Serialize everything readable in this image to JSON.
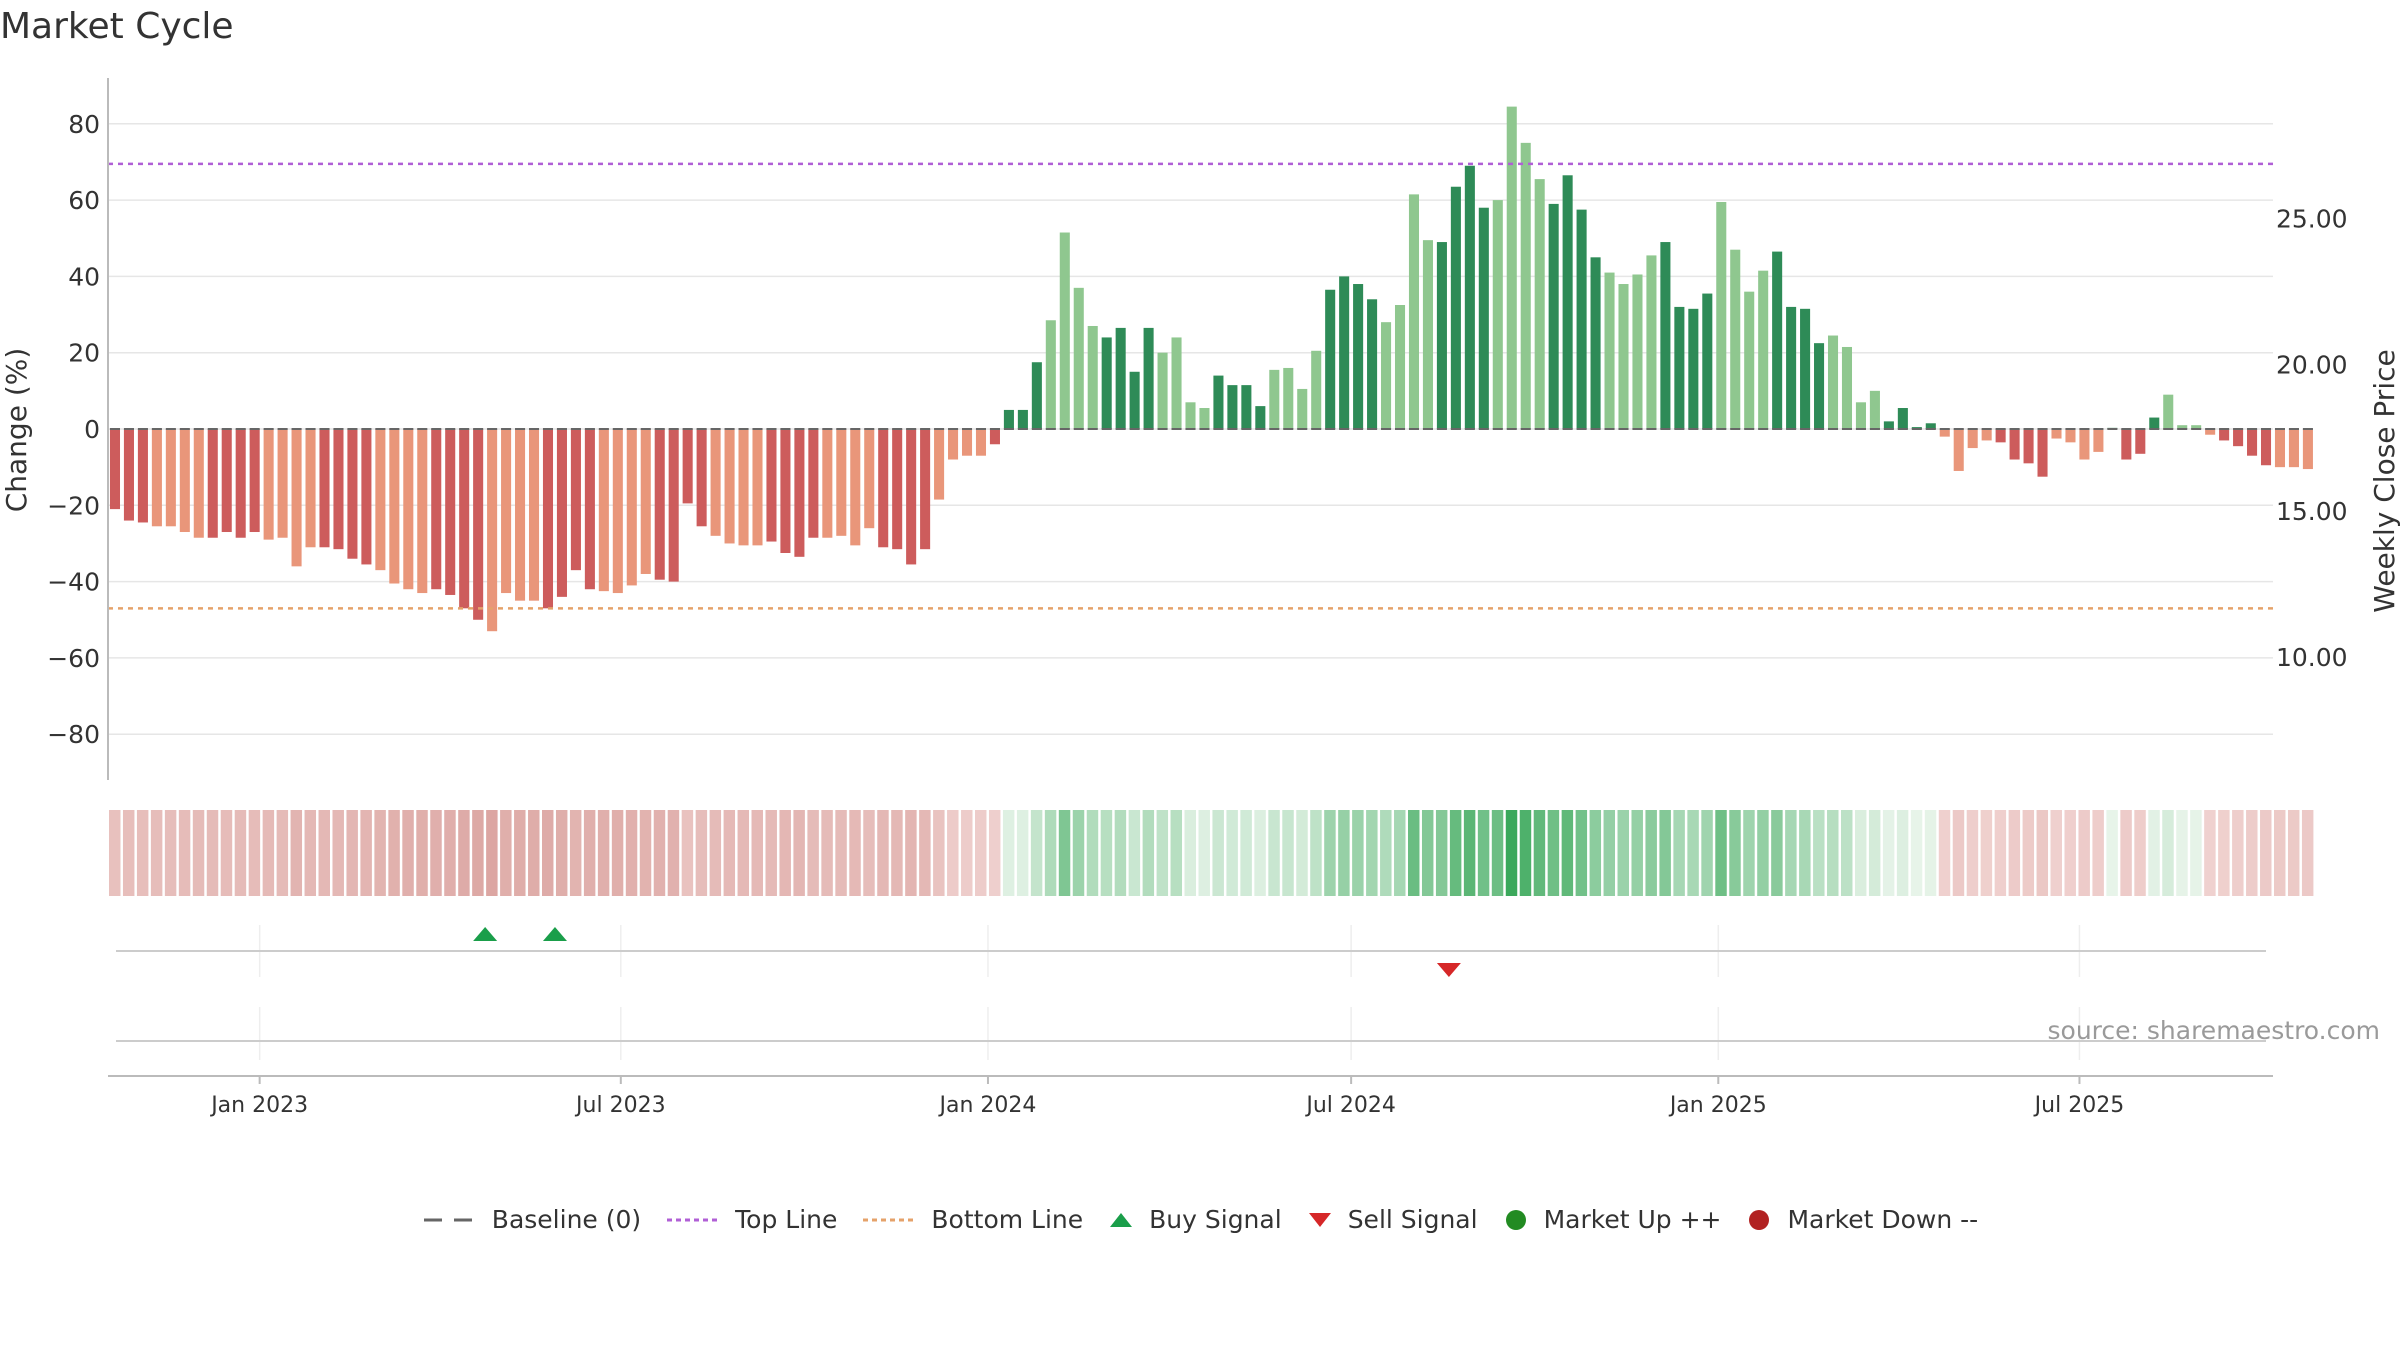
{
  "title": "Market Cycle",
  "source_text": "source: sharemaestro.com",
  "colors": {
    "neg_dark": "#cd5c5c",
    "neg_light": "#e9967a",
    "pos_dark": "#2e8b57",
    "pos_light": "#8fc78f",
    "top_line": "#b05fd6",
    "bottom_line": "#e5a26a",
    "baseline": "#666666",
    "buy": "#1a9e4a",
    "sell": "#d62728",
    "up": "#228b22",
    "down": "#b22222"
  },
  "legend": [
    {
      "label": "Baseline (0)",
      "symbol": "dash",
      "color_key": "baseline"
    },
    {
      "label": "Top Line",
      "symbol": "dotted",
      "color_key": "top_line"
    },
    {
      "label": "Bottom Line",
      "symbol": "dotted",
      "color_key": "bottom_line"
    },
    {
      "label": "Buy Signal",
      "symbol": "triangle-up",
      "color_key": "buy"
    },
    {
      "label": "Sell Signal",
      "symbol": "triangle-down",
      "color_key": "sell"
    },
    {
      "label": "Market Up ++",
      "symbol": "circle",
      "color_key": "up"
    },
    {
      "label": "Market Down --",
      "symbol": "circle",
      "color_key": "down"
    }
  ],
  "chart_data": {
    "type": "bar",
    "title": "Market Cycle",
    "ylabel": "Change (%)",
    "y2label": "Weekly Close Price",
    "ylim": [
      -92,
      92
    ],
    "yticks": [
      -80,
      -60,
      -40,
      -20,
      0,
      20,
      40,
      60,
      80
    ],
    "ytick_labels": [
      "−80",
      "−60",
      "−40",
      "−20",
      "0",
      "20",
      "40",
      "60",
      "80"
    ],
    "y2ticks": [
      10,
      15,
      20,
      25
    ],
    "y2tick_labels": [
      "10.00",
      "15.00",
      "20.00",
      "25.00"
    ],
    "top_line": 69.5,
    "bottom_line": -47,
    "baseline": 0,
    "x_start": "2022-10-17",
    "x_end": "2025-10-06",
    "xticks": [
      "2023-01-01",
      "2023-07-01",
      "2024-01-01",
      "2024-07-01",
      "2025-01-01",
      "2025-07-01"
    ],
    "xtick_labels": [
      "Jan 2023",
      "Jul 2023",
      "Jan 2024",
      "Jul 2024",
      "Jan 2025",
      "Jul 2025"
    ],
    "weeks_start": "2022-10-17",
    "values": [
      -21,
      -24,
      -24.5,
      -25.5,
      -25.5,
      -27,
      -28.5,
      -28.5,
      -27,
      -28.5,
      -27,
      -29,
      -28.5,
      -36,
      -31,
      -31,
      -31.5,
      -34,
      -35.5,
      -37,
      -40.5,
      -42,
      -43,
      -42,
      -43.5,
      -47,
      -50,
      -53,
      -43,
      -45,
      -45,
      -47,
      -44,
      -37,
      -42,
      -42.5,
      -43,
      -41,
      -38,
      -39.5,
      -40,
      -19.5,
      -25.5,
      -28,
      -30,
      -30.5,
      -30.5,
      -29.5,
      -32.5,
      -33.5,
      -28.5,
      -28.5,
      -28,
      -30.5,
      -26,
      -31,
      -31.5,
      -35.5,
      -31.5,
      -18.5,
      -8,
      -7,
      -7,
      -4,
      5,
      5,
      17.5,
      28.5,
      51.5,
      37,
      27,
      24,
      26.5,
      15,
      26.5,
      20,
      24,
      7,
      5.5,
      14,
      11.5,
      11.5,
      6,
      15.5,
      16,
      10.5,
      20.5,
      36.5,
      40,
      38,
      34,
      28,
      32.5,
      61.5,
      49.5,
      49,
      63.5,
      69,
      58,
      60,
      84.5,
      75,
      65.5,
      59,
      66.5,
      57.5,
      45,
      41,
      38,
      40.5,
      45.5,
      49,
      32,
      31.5,
      35.5,
      59.5,
      47,
      36,
      41.5,
      46.5,
      32,
      31.5,
      22.5,
      24.5,
      21.5,
      7,
      10,
      2,
      5.5,
      0.5,
      1.5,
      -2,
      -11,
      -5,
      -3,
      -3.5,
      -8,
      -9,
      -12.5,
      -2.5,
      -3.5,
      -8,
      -6,
      0.3,
      -8,
      -6.5,
      3,
      9,
      1,
      1,
      -1.5,
      -3,
      -4.5,
      -7,
      -9.5,
      -10,
      -10,
      -10.5
    ],
    "category_per_bar": "dark/light shade alternates by 4-week block",
    "heat_strip_values": [
      -21,
      -24,
      -24.5,
      -25.5,
      -25.5,
      -27,
      -28.5,
      -28.5,
      -27,
      -28.5,
      -27,
      -29,
      -28.5,
      -36,
      -31,
      -31,
      -31.5,
      -34,
      -35.5,
      -37,
      -40.5,
      -42,
      -43,
      -42,
      -43.5,
      -47,
      -50,
      -53,
      -43,
      -45,
      -45,
      -47,
      -44,
      -37,
      -42,
      -42.5,
      -43,
      -41,
      -38,
      -39.5,
      -40,
      -19.5,
      -25.5,
      -28,
      -30,
      -30.5,
      -30.5,
      -29.5,
      -32.5,
      -33.5,
      -28.5,
      -28.5,
      -28,
      -30.5,
      -26,
      -31,
      -31.5,
      -35.5,
      -31.5,
      -18.5,
      -8,
      -7,
      -7,
      -4,
      5,
      5,
      17.5,
      28.5,
      51.5,
      37,
      27,
      24,
      26.5,
      15,
      26.5,
      20,
      24,
      7,
      5.5,
      14,
      11.5,
      11.5,
      6,
      15.5,
      16,
      10.5,
      20.5,
      36.5,
      40,
      38,
      34,
      28,
      32.5,
      61.5,
      49.5,
      49,
      63.5,
      69,
      58,
      60,
      84.5,
      75,
      65.5,
      59,
      66.5,
      57.5,
      45,
      41,
      38,
      40.5,
      45.5,
      49,
      32,
      31.5,
      35.5,
      59.5,
      47,
      36,
      41.5,
      46.5,
      32,
      31.5,
      22.5,
      24.5,
      21.5,
      7,
      10,
      2,
      5.5,
      0.5,
      1.5,
      -2,
      -11,
      -5,
      -3,
      -3.5,
      -8,
      -9,
      -12.5,
      -2.5,
      -3.5,
      -8,
      -6,
      0.3,
      -8,
      -6.5,
      3,
      9,
      1,
      1,
      -1.5,
      -3,
      -4.5,
      -7,
      -9.5,
      -10,
      -10,
      -10.5
    ],
    "buy_signals": [
      "2023-04-24",
      "2023-05-29"
    ],
    "sell_signals": [
      "2024-08-19"
    ],
    "grid": true,
    "legend_position": "bottom-center"
  }
}
